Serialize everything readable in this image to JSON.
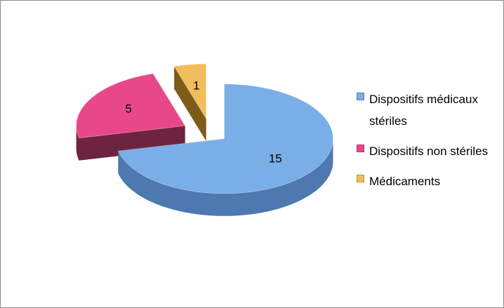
{
  "chart_data": {
    "type": "pie3d",
    "categories": [
      "Dispositifs médicaux stériles",
      "Dispositifs non stériles",
      "Médicaments"
    ],
    "values": [
      15,
      5,
      1
    ],
    "colors": [
      "#7aaee6",
      "#e8488a",
      "#f2bd5c"
    ],
    "side_colors": [
      "#4d78b0",
      "#6c2440",
      "#7c5c18"
    ],
    "legend": "right"
  }
}
